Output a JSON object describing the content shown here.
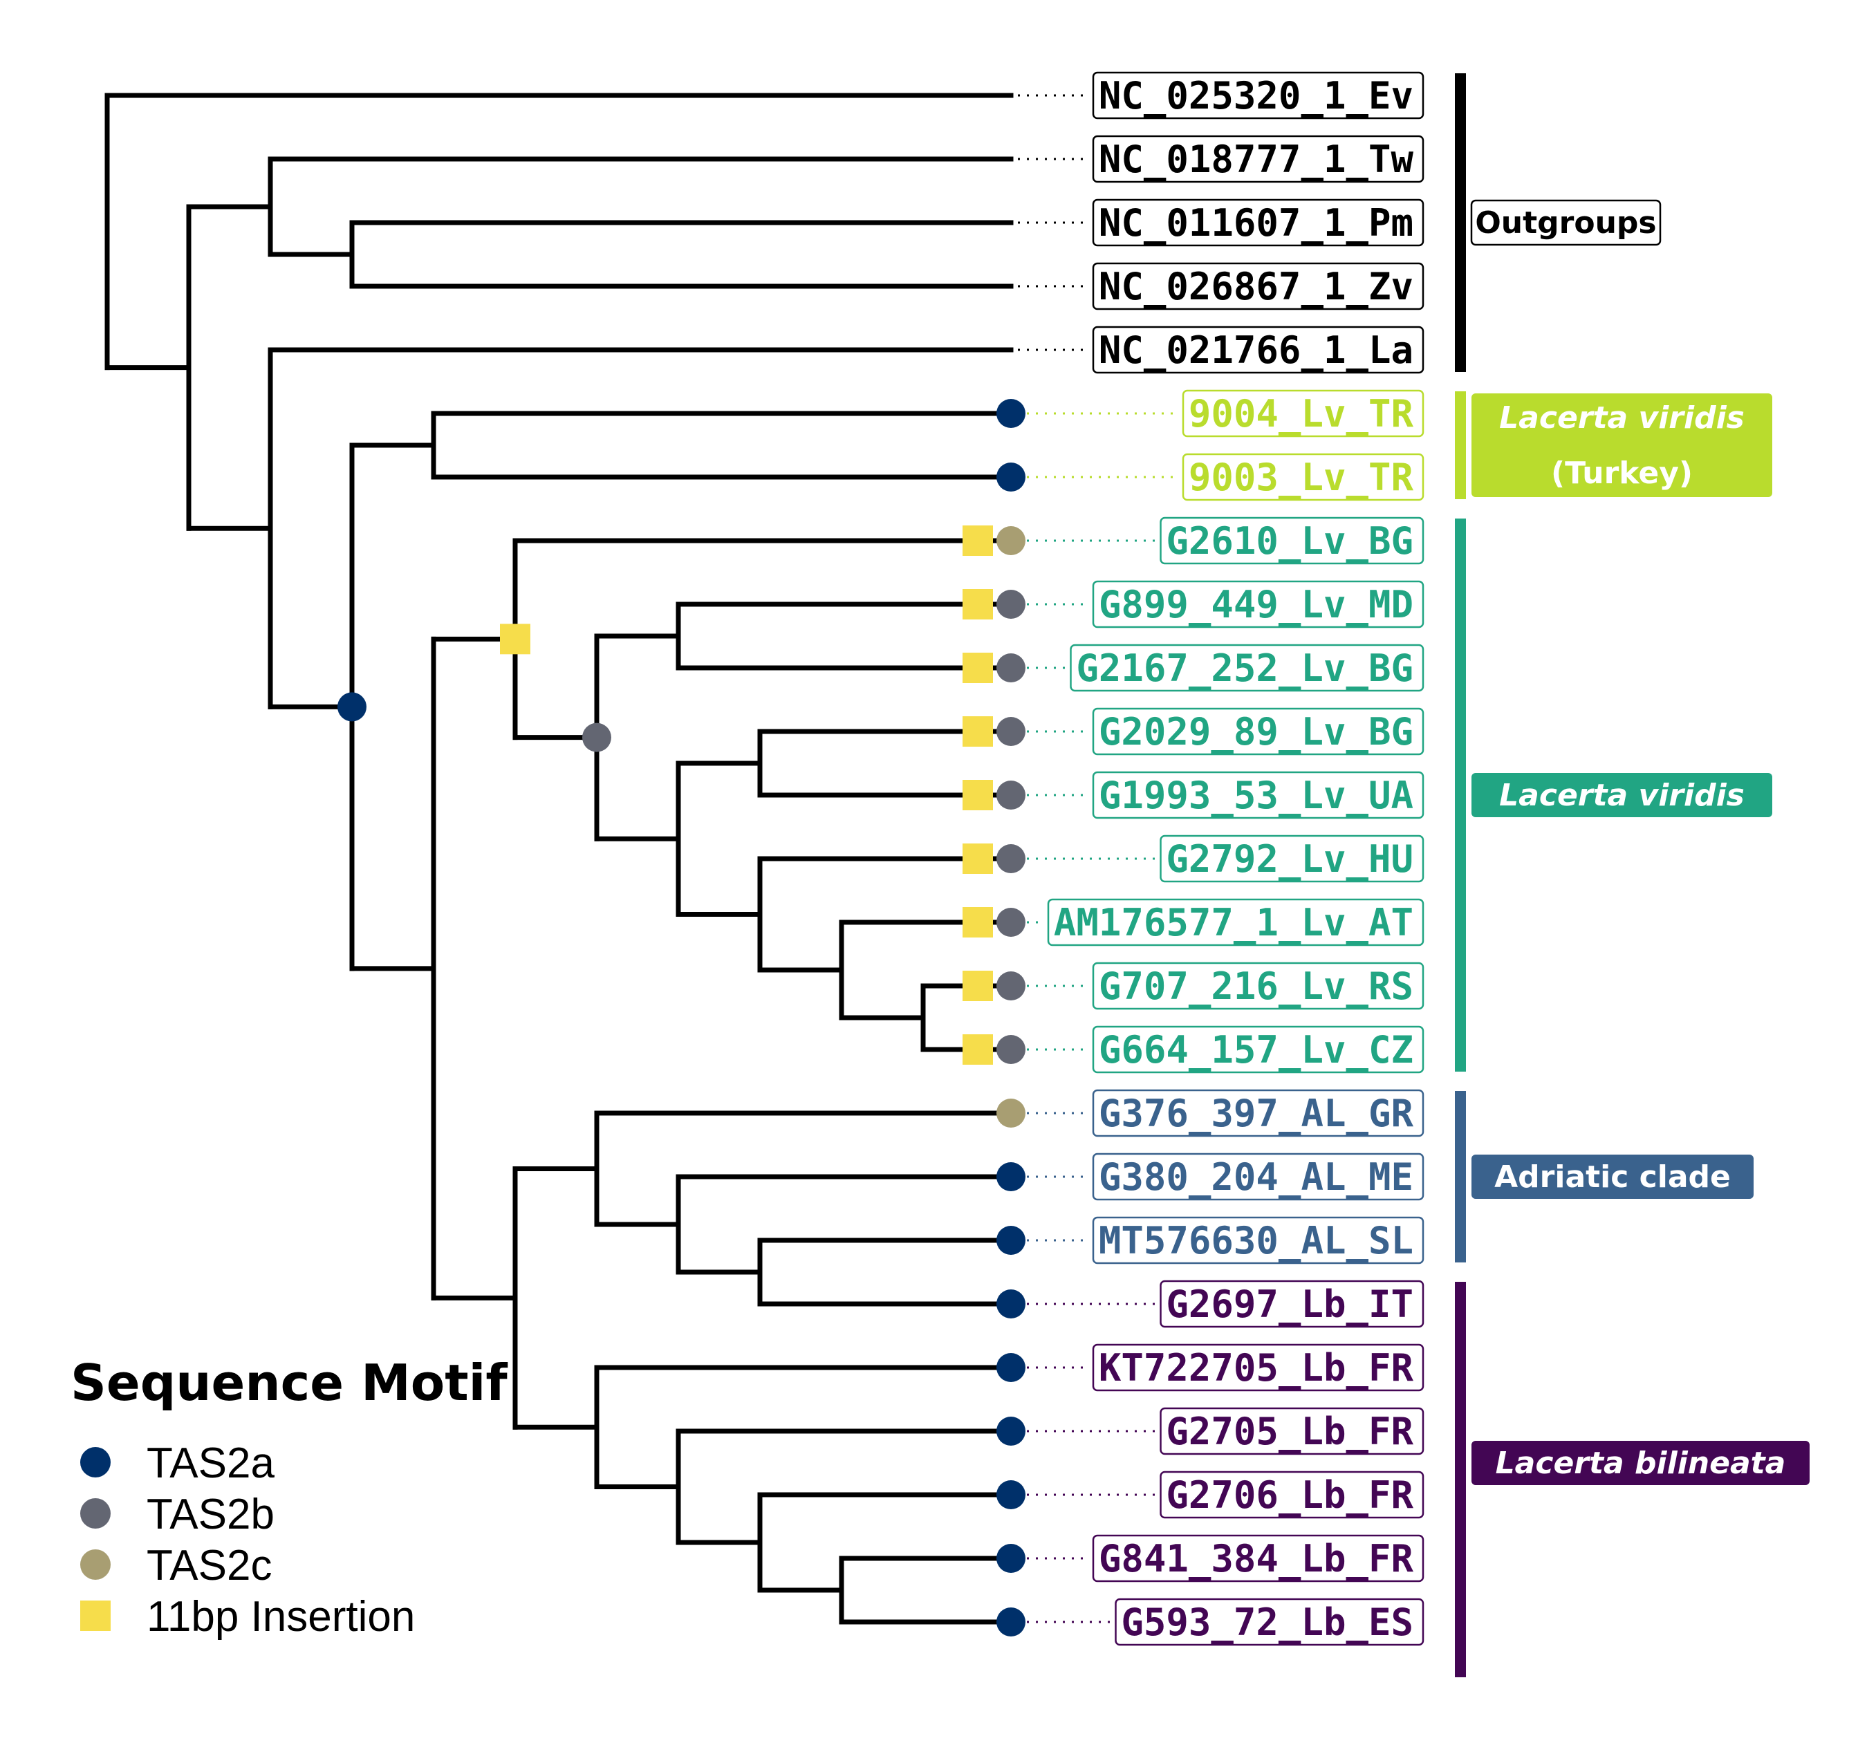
{
  "colors": {
    "branch": "#000000",
    "TAS2a": "#00306a",
    "TAS2b": "#636672",
    "TAS2c": "#a89e72",
    "insertion": "#f6dd4b",
    "outgroups": "#000000",
    "turkey": "#b9dc2d",
    "viridis": "#21a583",
    "adriatic": "#3a628d",
    "bilineata": "#430654"
  },
  "leaves": [
    {
      "label": "NC_025320_1_Ev",
      "group": "outgroups",
      "motif": null,
      "insertion": false
    },
    {
      "label": "NC_018777_1_Tw",
      "group": "outgroups",
      "motif": null,
      "insertion": false
    },
    {
      "label": "NC_011607_1_Pm",
      "group": "outgroups",
      "motif": null,
      "insertion": false
    },
    {
      "label": "NC_026867_1_Zv",
      "group": "outgroups",
      "motif": null,
      "insertion": false
    },
    {
      "label": "NC_021766_1_La",
      "group": "outgroups",
      "motif": null,
      "insertion": false
    },
    {
      "label": "9004_Lv_TR",
      "group": "turkey",
      "motif": "TAS2a",
      "insertion": false
    },
    {
      "label": "9003_Lv_TR",
      "group": "turkey",
      "motif": "TAS2a",
      "insertion": false
    },
    {
      "label": "G2610_Lv_BG",
      "group": "viridis",
      "motif": "TAS2c",
      "insertion": true
    },
    {
      "label": "G899_449_Lv_MD",
      "group": "viridis",
      "motif": "TAS2b",
      "insertion": true
    },
    {
      "label": "G2167_252_Lv_BG",
      "group": "viridis",
      "motif": "TAS2b",
      "insertion": true
    },
    {
      "label": "G2029_89_Lv_BG",
      "group": "viridis",
      "motif": "TAS2b",
      "insertion": true
    },
    {
      "label": "G1993_53_Lv_UA",
      "group": "viridis",
      "motif": "TAS2b",
      "insertion": true
    },
    {
      "label": "G2792_Lv_HU",
      "group": "viridis",
      "motif": "TAS2b",
      "insertion": true
    },
    {
      "label": "AM176577_1_Lv_AT",
      "group": "viridis",
      "motif": "TAS2b",
      "insertion": true
    },
    {
      "label": "G707_216_Lv_RS",
      "group": "viridis",
      "motif": "TAS2b",
      "insertion": true
    },
    {
      "label": "G664_157_Lv_CZ",
      "group": "viridis",
      "motif": "TAS2b",
      "insertion": true
    },
    {
      "label": "G376_397_AL_GR",
      "group": "adriatic",
      "motif": "TAS2c",
      "insertion": false
    },
    {
      "label": "G380_204_AL_ME",
      "group": "adriatic",
      "motif": "TAS2a",
      "insertion": false
    },
    {
      "label": "MT576630_AL_SL",
      "group": "adriatic",
      "motif": "TAS2a",
      "insertion": false
    },
    {
      "label": "G2697_Lb_IT",
      "group": "bilineata",
      "motif": "TAS2a",
      "insertion": false
    },
    {
      "label": "KT722705_Lb_FR",
      "group": "bilineata",
      "motif": "TAS2a",
      "insertion": false
    },
    {
      "label": "G2705_Lb_FR",
      "group": "bilineata",
      "motif": "TAS2a",
      "insertion": false
    },
    {
      "label": "G2706_Lb_FR",
      "group": "bilineata",
      "motif": "TAS2a",
      "insertion": false
    },
    {
      "label": "G841_384_Lb_FR",
      "group": "bilineata",
      "motif": "TAS2a",
      "insertion": false
    },
    {
      "label": "G593_72_Lb_ES",
      "group": "bilineata",
      "motif": "TAS2a",
      "insertion": false
    }
  ],
  "tree": "(NC_025320_1_Ev,((NC_018777_1_Tw,(NC_011607_1_Pm,NC_026867_1_Zv)),(NC_021766_1_La,((9004_Lv_TR,9003_Lv_TR),((G2610_Lv_BG,((G899_449_Lv_MD,G2167_252_Lv_BG),((G2029_89_Lv_BG,G1993_53_Lv_UA),(G2792_Lv_HU,(AM176577_1_Lv_AT,(G707_216_Lv_RS,G664_157_Lv_CZ)))))),((G376_397_AL_GR,(G380_204_AL_ME,(MT576630_AL_SL,G2697_Lb_IT))),(KT722705_Lb_FR,(G2705_Lb_FR,(G2706_Lb_FR,(G841_384_Lb_FR,G593_72_Lb_ES))))))))));",
  "node_markers": [
    {
      "clade": [
        "9004_Lv_TR",
        "G593_72_Lb_ES"
      ],
      "marker": "TAS2a"
    },
    {
      "clade": [
        "G2610_Lv_BG",
        "G664_157_Lv_CZ"
      ],
      "marker": "insertion"
    },
    {
      "clade": [
        "G899_449_Lv_MD",
        "G664_157_Lv_CZ"
      ],
      "marker": "TAS2b"
    }
  ],
  "clades": [
    {
      "name": "Outgroups",
      "lines": [
        "Outgroups"
      ],
      "group": "outgroups",
      "from": 0,
      "to": 4,
      "style": "box"
    },
    {
      "name": "Lacerta viridis (Turkey)",
      "lines": [
        "Lacerta viridis",
        "(Turkey)"
      ],
      "group": "turkey",
      "from": 5,
      "to": 6,
      "style": "filled",
      "italic": [
        true,
        false
      ]
    },
    {
      "name": "Lacerta viridis",
      "lines": [
        "Lacerta viridis"
      ],
      "group": "viridis",
      "from": 7,
      "to": 15,
      "style": "filled",
      "italic": [
        true
      ]
    },
    {
      "name": "Adriatic clade",
      "lines": [
        "Adriatic clade"
      ],
      "group": "adriatic",
      "from": 16,
      "to": 18,
      "style": "filled",
      "italic": [
        false
      ]
    },
    {
      "name": "Lacerta bilineata",
      "lines": [
        "Lacerta bilineata"
      ],
      "group": "bilineata",
      "from": 19,
      "to": 24,
      "style": "filled",
      "italic": [
        true
      ]
    }
  ],
  "legend": {
    "title": "Sequence Motif",
    "items": [
      {
        "label": "TAS2a",
        "key": "TAS2a",
        "shape": "circle"
      },
      {
        "label": "TAS2b",
        "key": "TAS2b",
        "shape": "circle"
      },
      {
        "label": "TAS2c",
        "key": "TAS2c",
        "shape": "circle"
      },
      {
        "label": "11bp Insertion",
        "key": "insertion",
        "shape": "square"
      }
    ]
  }
}
